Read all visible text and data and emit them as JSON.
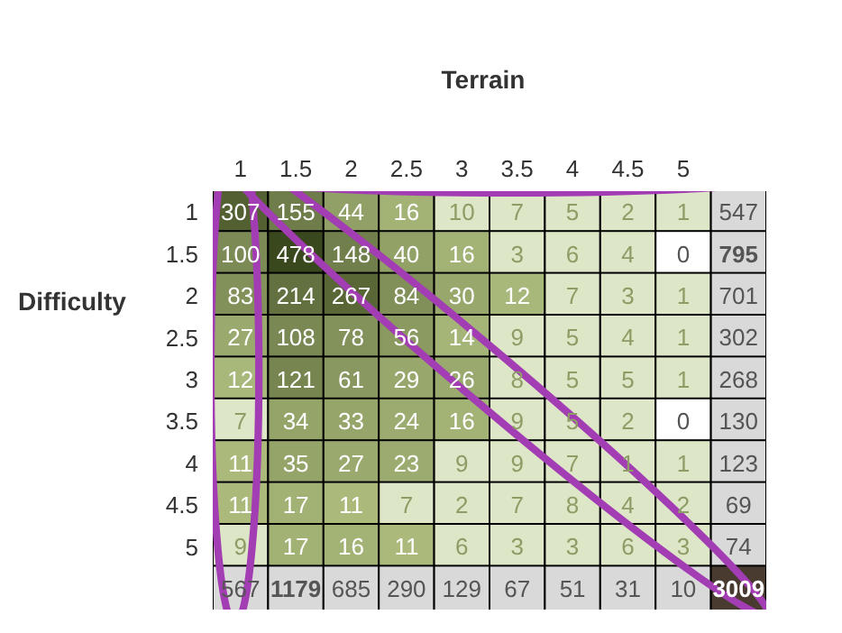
{
  "chart_data": {
    "type": "heatmap",
    "title": "Terrain",
    "ylabel": "Difficulty",
    "categories": [
      "1",
      "1.5",
      "2",
      "2.5",
      "3",
      "3.5",
      "4",
      "4.5",
      "5",
      null
    ],
    "y_categories": [
      "1",
      "1.5",
      "2",
      "2.5",
      "3",
      "3.5",
      "4",
      "4.5",
      "5",
      null
    ],
    "cells": [
      [
        307,
        155,
        44,
        16,
        10,
        7,
        5,
        2,
        1,
        547
      ],
      [
        100,
        478,
        148,
        40,
        16,
        3,
        6,
        4,
        0,
        795
      ],
      [
        83,
        214,
        267,
        84,
        30,
        12,
        7,
        3,
        1,
        701
      ],
      [
        27,
        108,
        78,
        56,
        14,
        9,
        5,
        4,
        1,
        302
      ],
      [
        12,
        121,
        61,
        29,
        26,
        8,
        5,
        5,
        1,
        268
      ],
      [
        7,
        34,
        33,
        24,
        16,
        9,
        5,
        2,
        0,
        130
      ],
      [
        11,
        35,
        27,
        23,
        9,
        9,
        7,
        1,
        1,
        123
      ],
      [
        11,
        17,
        11,
        7,
        2,
        7,
        8,
        4,
        2,
        69
      ],
      [
        9,
        17,
        16,
        11,
        6,
        3,
        3,
        6,
        3,
        74
      ],
      [
        567,
        1179,
        685,
        290,
        129,
        67,
        51,
        31,
        10,
        3009
      ]
    ],
    "data_labels": true
  }
}
